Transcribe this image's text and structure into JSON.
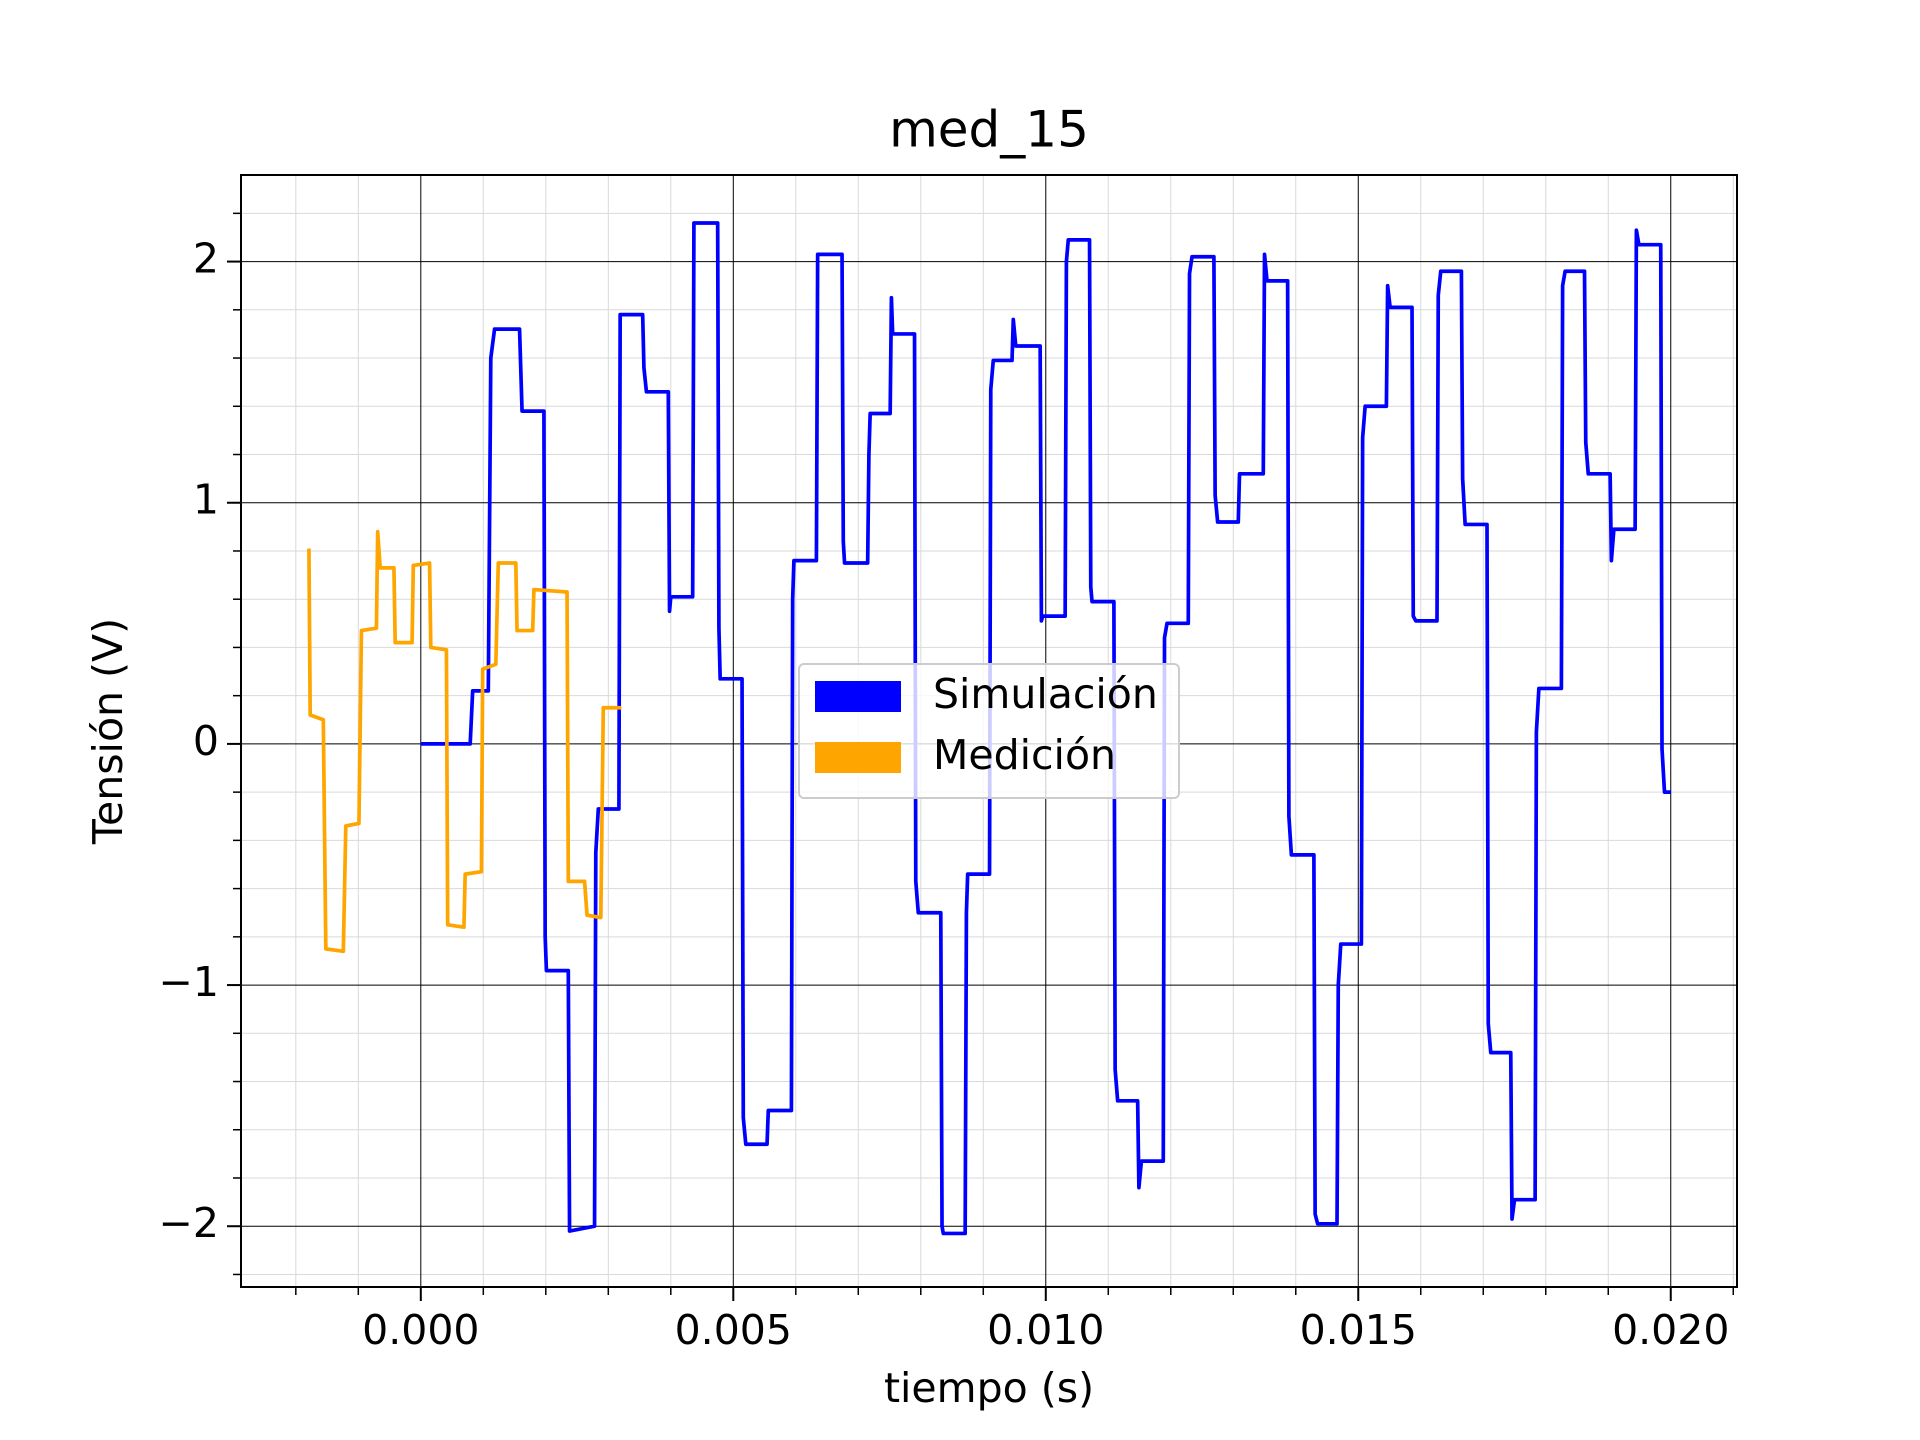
{
  "chart_data": {
    "type": "line",
    "title": "med_15",
    "xlabel": "tiempo (s)",
    "ylabel": "Tensión (V)",
    "xlim": [
      -0.002877,
      0.02106
    ],
    "ylim": [
      -2.252,
      2.359
    ],
    "xticks": [
      {
        "value": 0,
        "label": "0.000"
      },
      0.005,
      {
        "value": 0.01,
        "label": "0.010"
      },
      0.015,
      {
        "value": 0.02,
        "label": "0.020"
      }
    ],
    "yticks": [
      {
        "value": -2,
        "label": "−2"
      },
      {
        "value": -1,
        "label": "−1"
      },
      0,
      1,
      2
    ],
    "xminorticks": [
      -0.002,
      -0.001,
      0.001,
      0.002,
      0.003,
      0.004,
      0.006,
      0.007,
      0.008,
      0.009,
      0.011,
      0.012,
      0.013,
      0.014,
      0.016,
      0.017,
      0.018,
      0.019,
      0.021
    ],
    "yminorticks": [
      -2.2,
      -1.8,
      -1.6,
      -1.4,
      -1.2,
      -0.8,
      -0.6,
      -0.4,
      -0.2,
      0.2,
      0.4,
      0.6,
      0.8,
      1.2,
      1.4,
      1.6,
      1.8,
      2.2
    ],
    "grid": true,
    "legend": "center",
    "series": [
      {
        "name": "Simulación",
        "color": "#0000ff",
        "x": [
          0,
          0.00079,
          0.00083,
          0.00108,
          0.00112,
          0.00118,
          0.00158,
          0.00162,
          0.00197,
          0.00199,
          0.00201,
          0.00236,
          0.00238,
          0.00278,
          0.0028,
          0.00284,
          0.00317,
          0.00319,
          0.00355,
          0.00357,
          0.00361,
          0.00396,
          0.00398,
          0.004,
          0.00435,
          0.00437,
          0.00475,
          0.00477,
          0.00479,
          0.00514,
          0.00516,
          0.0052,
          0.00554,
          0.00556,
          0.00593,
          0.00595,
          0.00597,
          0.00633,
          0.00635,
          0.00674,
          0.00676,
          0.00678,
          0.00715,
          0.00717,
          0.00719,
          0.00751,
          0.00753,
          0.00755,
          0.0079,
          0.00792,
          0.00796,
          0.00832,
          0.00834,
          0.00836,
          0.00871,
          0.00873,
          0.00875,
          0.0091,
          0.00912,
          0.00916,
          0.00946,
          0.00948,
          0.00952,
          0.00991,
          0.00993,
          0.00995,
          0.01031,
          0.01033,
          0.01036,
          0.0107,
          0.01072,
          0.01074,
          0.01109,
          0.01111,
          0.01115,
          0.01147,
          0.01149,
          0.01153,
          0.01188,
          0.0119,
          0.01194,
          0.01228,
          0.0123,
          0.01234,
          0.01269,
          0.01271,
          0.01275,
          0.01308,
          0.0131,
          0.01348,
          0.0135,
          0.01354,
          0.01387,
          0.01389,
          0.01393,
          0.01429,
          0.01431,
          0.01435,
          0.01466,
          0.01468,
          0.01472,
          0.01505,
          0.01507,
          0.01511,
          0.01545,
          0.01547,
          0.01551,
          0.01586,
          0.01588,
          0.01592,
          0.01626,
          0.01628,
          0.01632,
          0.01665,
          0.01667,
          0.01671,
          0.01706,
          0.01708,
          0.01712,
          0.01744,
          0.01746,
          0.0175,
          0.01783,
          0.01785,
          0.01789,
          0.01825,
          0.01827,
          0.01831,
          0.01862,
          0.01864,
          0.01868,
          0.01903,
          0.01905,
          0.01909,
          0.01943,
          0.01945,
          0.01949,
          0.01984,
          0.01986,
          0.0199,
          0.02
        ],
        "values": [
          0,
          0,
          0.22,
          0.22,
          1.6,
          1.72,
          1.72,
          1.38,
          1.38,
          -0.8,
          -0.94,
          -0.94,
          -2.02,
          -2.0,
          -0.45,
          -0.27,
          -0.27,
          1.78,
          1.78,
          1.56,
          1.46,
          1.46,
          0.55,
          0.61,
          0.61,
          2.16,
          2.16,
          0.48,
          0.27,
          0.27,
          -1.55,
          -1.66,
          -1.66,
          -1.52,
          -1.52,
          0.6,
          0.76,
          0.76,
          2.03,
          2.03,
          0.84,
          0.75,
          0.75,
          1.2,
          1.37,
          1.37,
          1.85,
          1.7,
          1.7,
          -0.57,
          -0.7,
          -0.7,
          -2.0,
          -2.03,
          -2.03,
          -0.7,
          -0.54,
          -0.54,
          1.47,
          1.59,
          1.59,
          1.76,
          1.65,
          1.65,
          0.51,
          0.53,
          0.53,
          2.0,
          2.09,
          2.09,
          0.65,
          0.59,
          0.59,
          -1.35,
          -1.48,
          -1.48,
          -1.84,
          -1.73,
          -1.73,
          0.44,
          0.5,
          0.5,
          1.95,
          2.02,
          2.02,
          1.03,
          0.92,
          0.92,
          1.12,
          1.12,
          2.03,
          1.92,
          1.92,
          -0.3,
          -0.46,
          -0.46,
          -1.95,
          -1.99,
          -1.99,
          -1.0,
          -0.83,
          -0.83,
          1.27,
          1.4,
          1.4,
          1.9,
          1.81,
          1.81,
          0.53,
          0.51,
          0.51,
          1.86,
          1.96,
          1.96,
          1.1,
          0.91,
          0.91,
          -1.16,
          -1.28,
          -1.28,
          -1.97,
          -1.89,
          -1.89,
          0.05,
          0.23,
          0.23,
          1.9,
          1.96,
          1.96,
          1.25,
          1.12,
          1.12,
          0.76,
          0.89,
          0.89,
          2.13,
          2.07,
          2.07,
          -0.02,
          -0.2,
          -0.2
        ]
      },
      {
        "name": "Medición",
        "color": "#ffa500",
        "x": [
          -0.00179,
          -0.00177,
          -0.00156,
          -0.00152,
          -0.00124,
          -0.0012,
          -0.00099,
          -0.00095,
          -0.00071,
          -0.00069,
          -0.00065,
          -0.00043,
          -0.00041,
          -0.00014,
          -0.00012,
          0.00014,
          0.00016,
          0.00041,
          0.00043,
          0.00069,
          0.00071,
          0.00097,
          0.00099,
          0.0012,
          0.00124,
          0.00152,
          0.00154,
          0.00179,
          0.00181,
          0.00234,
          0.00236,
          0.00262,
          0.00266,
          0.00288,
          0.00292,
          0.00321
        ],
        "values": [
          0.81,
          0.12,
          0.1,
          -0.85,
          -0.86,
          -0.34,
          -0.33,
          0.47,
          0.48,
          0.88,
          0.73,
          0.73,
          0.42,
          0.42,
          0.74,
          0.75,
          0.4,
          0.39,
          -0.75,
          -0.76,
          -0.54,
          -0.53,
          0.31,
          0.33,
          0.75,
          0.75,
          0.47,
          0.47,
          0.64,
          0.63,
          -0.57,
          -0.57,
          -0.71,
          -0.72,
          0.15,
          0.15
        ]
      }
    ]
  }
}
